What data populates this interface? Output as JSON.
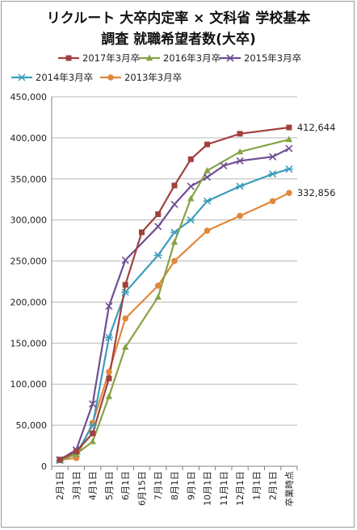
{
  "chart_data": {
    "type": "line",
    "title_line1": "リクルート 大卒内定率 × 文科省 学校基本",
    "title_line2": "調査 就職希望者数(大卒)",
    "categories": [
      "2月1日",
      "3月1日",
      "4月1日",
      "5月1日",
      "6月1日",
      "6月15日",
      "7月1日",
      "8月1日",
      "9月1日",
      "10月1日",
      "11月1日",
      "12月1日",
      "1月1日",
      "2月1日",
      "卒業時点"
    ],
    "ylim": [
      0,
      450000
    ],
    "yticks": [
      0,
      50000,
      100000,
      150000,
      200000,
      250000,
      300000,
      350000,
      400000,
      450000
    ],
    "ytick_labels": [
      "0",
      "50,000",
      "100,000",
      "150,000",
      "200,000",
      "250,000",
      "300,000",
      "350,000",
      "400,000",
      "450,000"
    ],
    "grid": true,
    "legend_position": "top",
    "series": [
      {
        "name": "2017年3月卒",
        "color": "#a0413e",
        "marker": "square",
        "values": [
          8000,
          18000,
          40000,
          107000,
          221000,
          285000,
          307000,
          342000,
          374000,
          392000,
          null,
          405000,
          null,
          null,
          412644
        ]
      },
      {
        "name": "2016年3月卒",
        "color": "#86a345",
        "marker": "triangle",
        "values": [
          7000,
          15000,
          30000,
          85000,
          145000,
          null,
          206000,
          273000,
          326000,
          360000,
          null,
          383000,
          null,
          null,
          398000
        ]
      },
      {
        "name": "2015年3月卒",
        "color": "#6f4e92",
        "marker": "x",
        "values": [
          8000,
          20000,
          76000,
          195000,
          251000,
          null,
          292000,
          319000,
          341000,
          352000,
          366000,
          372000,
          null,
          377000,
          387000
        ]
      },
      {
        "name": "2014年3月卒",
        "color": "#3c9dbb",
        "marker": "star",
        "values": [
          7000,
          15000,
          50000,
          157000,
          212000,
          null,
          257000,
          285000,
          300000,
          323000,
          null,
          341000,
          null,
          356000,
          362000
        ]
      },
      {
        "name": "2013年3月卒",
        "color": "#e0893b",
        "marker": "circle",
        "values": [
          8000,
          10000,
          53000,
          115000,
          180000,
          null,
          220000,
          250000,
          null,
          287000,
          null,
          305000,
          null,
          323000,
          332856
        ]
      }
    ],
    "data_labels": [
      {
        "series": 0,
        "index": 14,
        "text": "412,644"
      },
      {
        "series": 4,
        "index": 14,
        "text": "332,856"
      }
    ]
  }
}
